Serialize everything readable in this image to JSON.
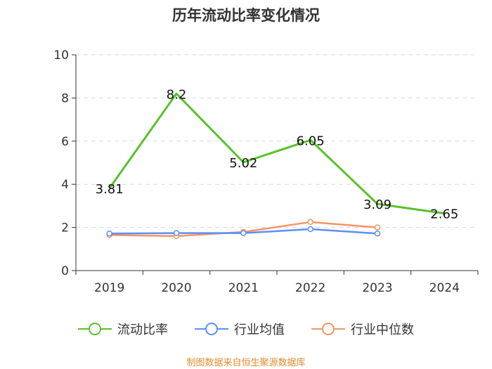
{
  "chart_data": {
    "type": "line",
    "title": "历年流动比率变化情况",
    "categories": [
      "2019",
      "2020",
      "2021",
      "2022",
      "2023",
      "2024"
    ],
    "ylim": [
      0,
      10
    ],
    "yticks": [
      0,
      2,
      4,
      6,
      8,
      10
    ],
    "grid": true,
    "series": [
      {
        "name": "流动比率",
        "color": "#5ac12a",
        "values": [
          3.81,
          8.2,
          5.02,
          6.05,
          3.09,
          2.65
        ],
        "labels": [
          "3.81",
          "8.2",
          "5.02",
          "6.05",
          "3.09",
          "2.65"
        ]
      },
      {
        "name": "行业均值",
        "color": "#5b8ff9",
        "values": [
          1.72,
          1.74,
          1.74,
          1.92,
          1.72,
          null
        ]
      },
      {
        "name": "行业中位数",
        "color": "#f59563",
        "values": [
          1.65,
          1.6,
          1.79,
          2.25,
          2.0,
          null
        ]
      }
    ],
    "legend_position": "bottom",
    "source": "制图数据来自恒生聚源数据库"
  }
}
